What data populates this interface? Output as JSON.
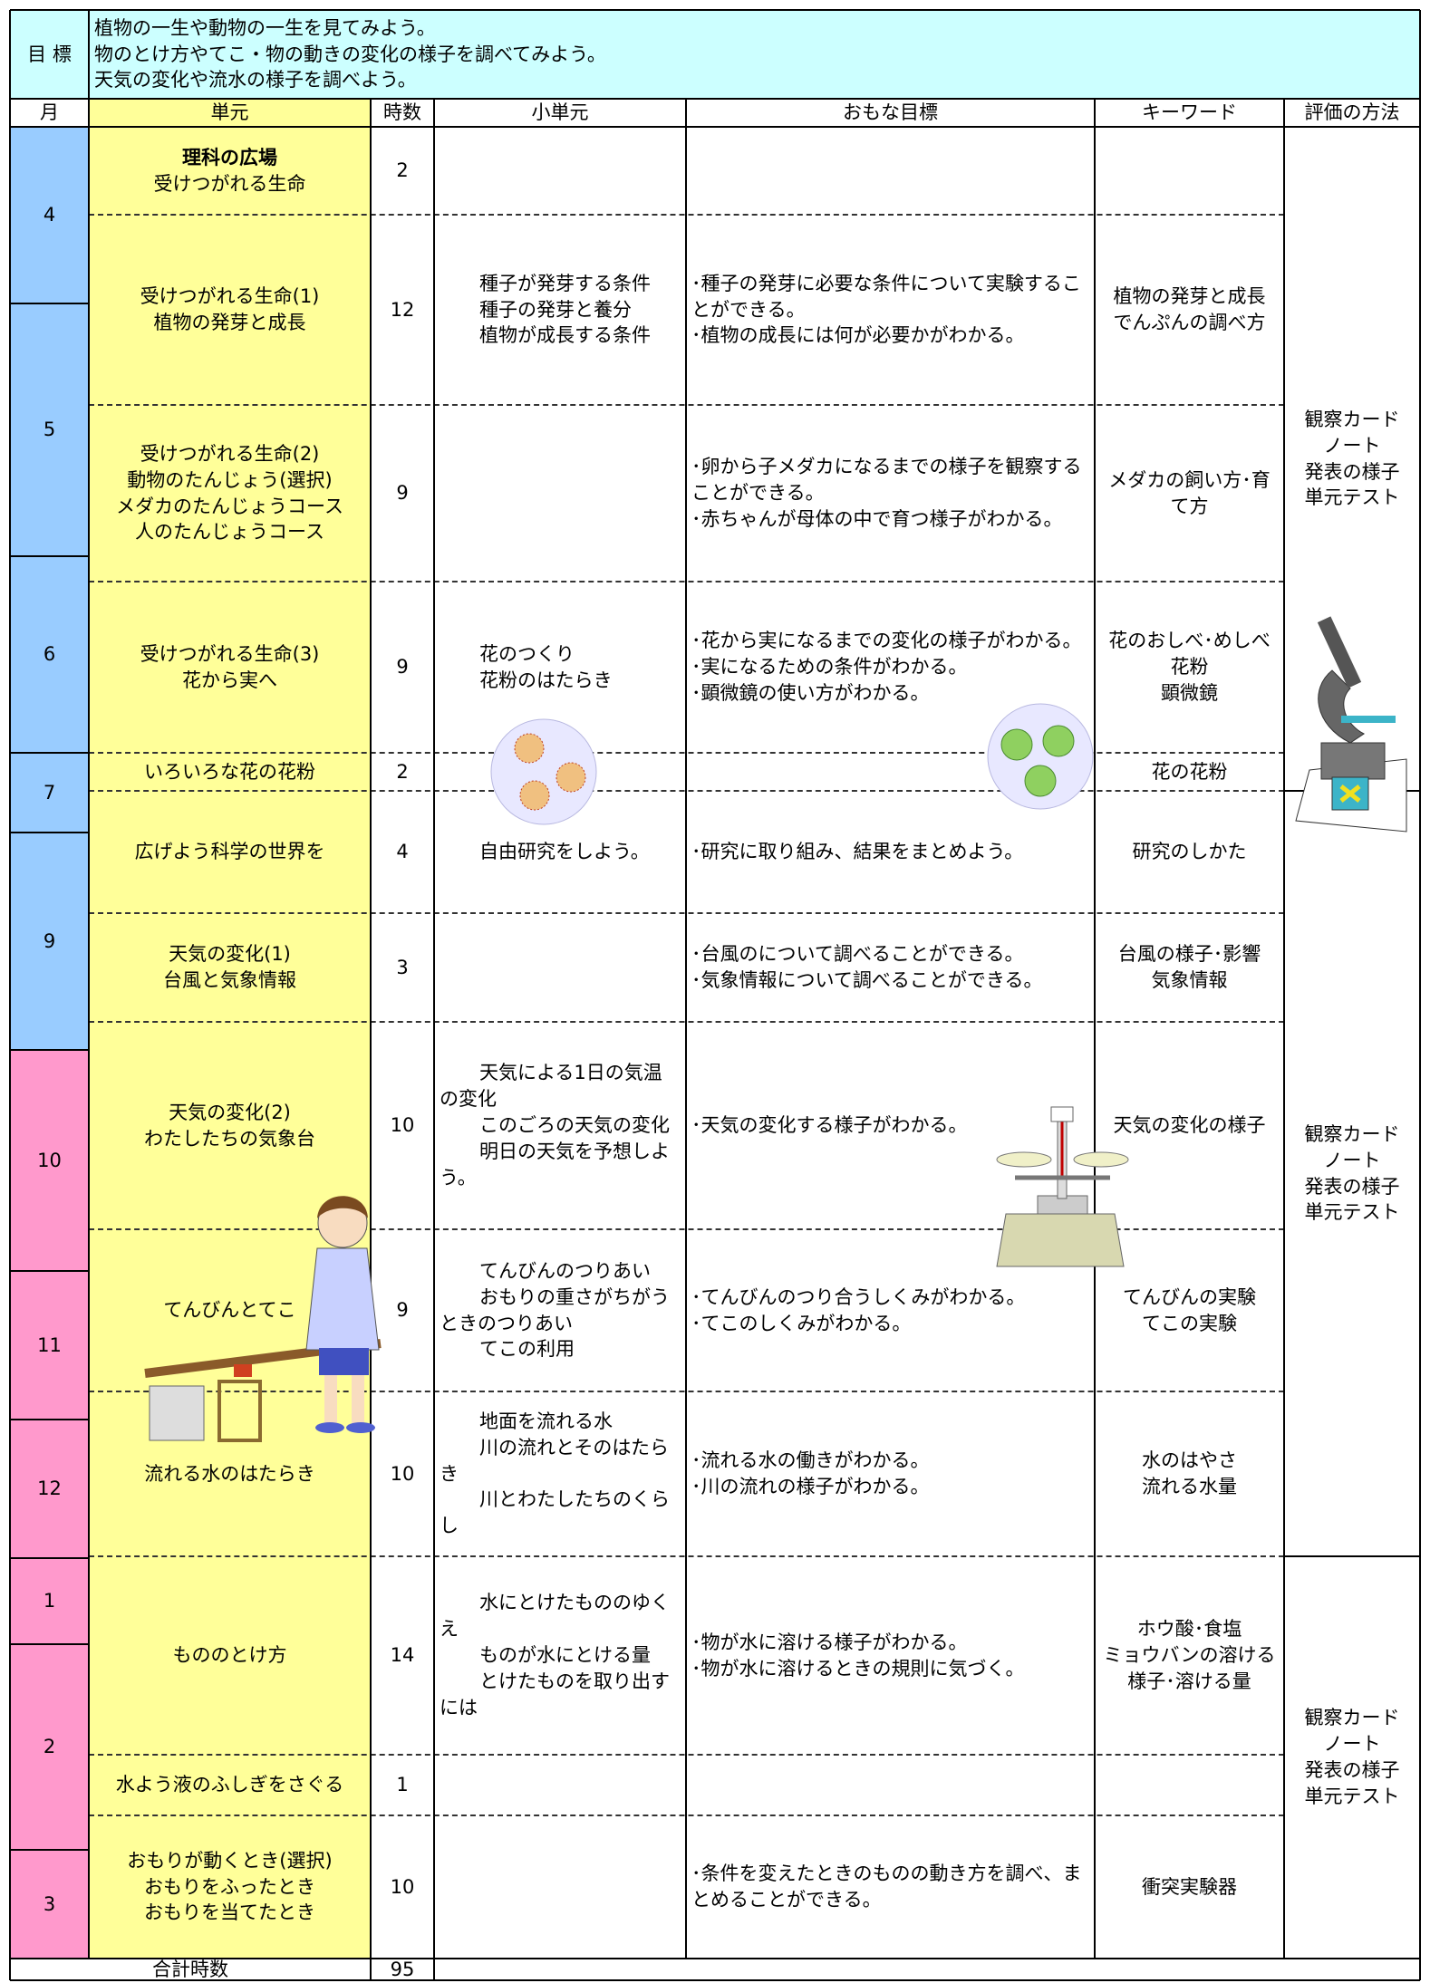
{
  "goals": {
    "label": "目 標",
    "lines": [
      "植物の一生や動物の一生を見てみよう。",
      "物のとけ方やてこ・物の動きの変化の様子を調べてみよう。",
      "天気の変化や流水の様子を調べよう。"
    ]
  },
  "header": [
    "月",
    "単元",
    "時数",
    "小単元",
    "おもな目標",
    "キーワード",
    "評価の方法"
  ],
  "months": [
    "4",
    "5",
    "6",
    "7",
    "9",
    "10",
    "11",
    "12",
    "1",
    "2",
    "3"
  ],
  "rows": [
    {
      "unit": [
        "理科の広場",
        "受けつがれる生命"
      ],
      "hours": 2,
      "subunits": [],
      "goals": [],
      "keywords": []
    },
    {
      "unit": [
        "受けつがれる生命(1)",
        "植物の発芽と成長"
      ],
      "hours": 12,
      "subunits": [
        "種子が発芽する条件",
        "種子の発芽と養分",
        "植物が成長する条件"
      ],
      "goals": [
        "･種子の発芽に必要な条件について実験することができる。",
        "･植物の成長には何が必要かがわかる。"
      ],
      "keywords": [
        "植物の発芽と成長",
        "でんぷんの調べ方"
      ]
    },
    {
      "unit": [
        "受けつがれる生命(2)",
        "動物のたんじょう(選択)",
        "メダカのたんじょうコース",
        "人のたんじょうコース"
      ],
      "hours": 9,
      "subunits": [],
      "goals": [
        "･卵から子メダカになるまでの様子を観察することができる。",
        "･赤ちゃんが母体の中で育つ様子がわかる。"
      ],
      "keywords": [
        "メダカの飼い方･育て方"
      ]
    },
    {
      "unit": [
        "受けつがれる生命(3)",
        "花から実へ"
      ],
      "hours": 9,
      "subunits": [
        "花のつくり",
        "花粉のはたらき"
      ],
      "goals": [
        "･花から実になるまでの変化の様子がわかる。",
        "･実になるための条件がわかる。",
        "･顕微鏡の使い方がわかる。"
      ],
      "keywords": [
        "花のおしべ･めしべ",
        "花粉",
        "顕微鏡"
      ]
    },
    {
      "unit": [
        "いろいろな花の花粉"
      ],
      "hours": 2,
      "subunits": [],
      "goals": [],
      "keywords": [
        "花の花粉"
      ]
    },
    {
      "unit": [
        "広げよう科学の世界を"
      ],
      "hours": 4,
      "subunits": [
        "自由研究をしよう。"
      ],
      "goals": [
        "･研究に取り組み、結果をまとめよう。"
      ],
      "keywords": [
        "研究のしかた"
      ]
    },
    {
      "unit": [
        "天気の変化(1)",
        "台風と気象情報"
      ],
      "hours": 3,
      "subunits": [],
      "goals": [
        "･台風のについて調べることができる。",
        "･気象情報について調べることができる。"
      ],
      "keywords": [
        "台風の様子･影響",
        "気象情報"
      ]
    },
    {
      "unit": [
        "天気の変化(2)",
        "わたしたちの気象台"
      ],
      "hours": 10,
      "subunits": [
        "天気による1日の気温の変化",
        "このごろの天気の変化",
        "明日の天気を予想しよう。"
      ],
      "goals": [
        "･天気の変化する様子がわかる。"
      ],
      "keywords": [
        "天気の変化の様子"
      ]
    },
    {
      "unit": [
        "てんびんとてこ"
      ],
      "hours": 9,
      "subunits": [
        "てんびんのつりあい",
        "おもりの重さがちがうときのつりあい",
        "てこの利用"
      ],
      "goals": [
        "･てんびんのつり合うしくみがわかる。",
        "･てこのしくみがわかる。"
      ],
      "keywords": [
        "てんびんの実験",
        "てこの実験"
      ]
    },
    {
      "unit": [
        "流れる水のはたらき"
      ],
      "hours": 10,
      "subunits": [
        "地面を流れる水",
        "川の流れとそのはたらき",
        "川とわたしたちのくらし"
      ],
      "goals": [
        "･流れる水の働きがわかる。",
        "･川の流れの様子がわかる。"
      ],
      "keywords": [
        "水のはやさ",
        "流れる水量"
      ]
    },
    {
      "unit": [
        "もののとけ方"
      ],
      "hours": 14,
      "subunits": [
        "水にとけたもののゆくえ",
        "ものが水にとける量",
        "とけたものを取り出すには"
      ],
      "goals": [
        "･物が水に溶ける様子がわかる。",
        "･物が水に溶けるときの規則に気づく。"
      ],
      "keywords": [
        "ホウ酸･食塩",
        "ミョウバンの溶ける様子･溶ける量"
      ]
    },
    {
      "unit": [
        "水よう液のふしぎをさぐる"
      ],
      "hours": 1,
      "subunits": [],
      "goals": [],
      "keywords": []
    },
    {
      "unit": [
        "おもりが動くとき(選択)",
        "おもりをふったとき",
        "おもりを当てたとき"
      ],
      "hours": 10,
      "subunits": [],
      "goals": [
        "･条件を変えたときのものの動き方を調べ、まとめることができる。"
      ],
      "keywords": [
        "衝突実験器"
      ]
    }
  ],
  "evaluation": [
    [
      "観察カード",
      "ノート",
      "発表の様子",
      "単元テスト"
    ],
    [
      "観察カード",
      "ノート",
      "発表の様子",
      "単元テスト"
    ],
    [
      "観察カード",
      "ノート",
      "発表の様子",
      "単元テスト"
    ]
  ],
  "total": {
    "label": "合計時数",
    "hours": 95
  }
}
